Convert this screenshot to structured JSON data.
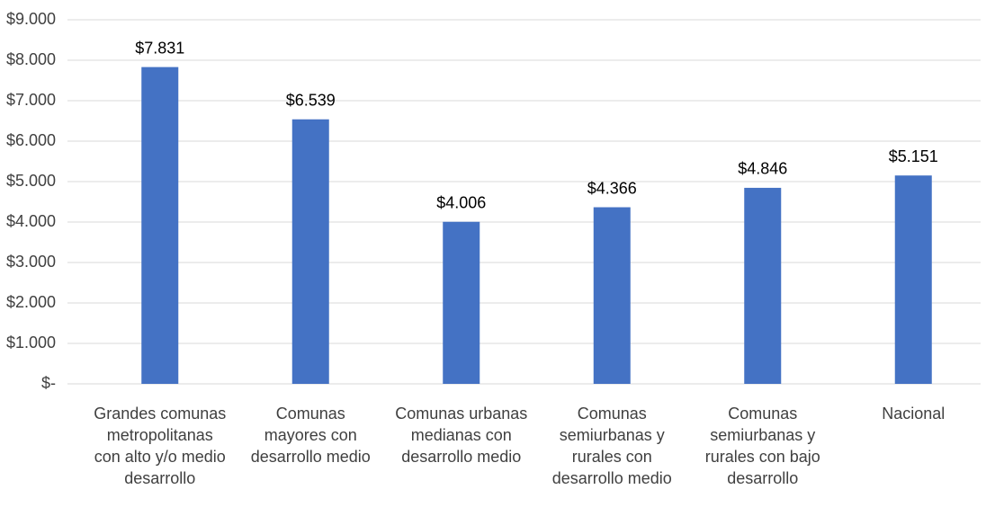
{
  "chart_data": {
    "type": "bar",
    "categories": [
      "Grandes comunas metropolitanas con alto y/o medio desarrollo",
      "Comunas mayores con desarrollo medio",
      "Comunas urbanas medianas con desarrollo medio",
      "Comunas semiurbanas y rurales con desarrollo medio",
      "Comunas semiurbanas y rurales con bajo desarrollo",
      "Nacional"
    ],
    "values": [
      7831,
      6539,
      4006,
      4366,
      4846,
      5151
    ],
    "value_labels": [
      "$7.831",
      "$6.539",
      "$4.006",
      "$4.366",
      "$4.846",
      "$5.151"
    ],
    "color": "#4472c4",
    "ylim": [
      0,
      9000
    ],
    "yticks": [
      {
        "value": 0,
        "label": "$-"
      },
      {
        "value": 1000,
        "label": "$1.000"
      },
      {
        "value": 2000,
        "label": "$2.000"
      },
      {
        "value": 3000,
        "label": "$3.000"
      },
      {
        "value": 4000,
        "label": "$4.000"
      },
      {
        "value": 5000,
        "label": "$5.000"
      },
      {
        "value": 6000,
        "label": "$6.000"
      },
      {
        "value": 7000,
        "label": "$7.000"
      },
      {
        "value": 8000,
        "label": "$8.000"
      },
      {
        "value": 9000,
        "label": "$9.000"
      }
    ],
    "grid": true
  }
}
